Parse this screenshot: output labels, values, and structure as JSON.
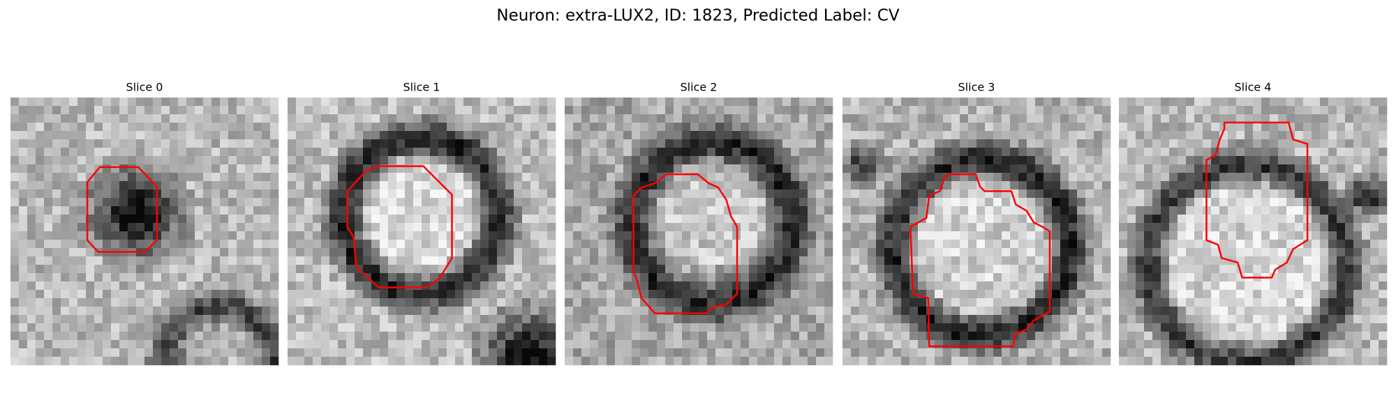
{
  "header": {
    "title": "Neuron: extra-LUX2, ID: 1823, Predicted Label: CV"
  },
  "panels": [
    {
      "title": "Slice 0"
    },
    {
      "title": "Slice 1"
    },
    {
      "title": "Slice 2"
    },
    {
      "title": "Slice 3"
    },
    {
      "title": "Slice 4"
    }
  ]
}
